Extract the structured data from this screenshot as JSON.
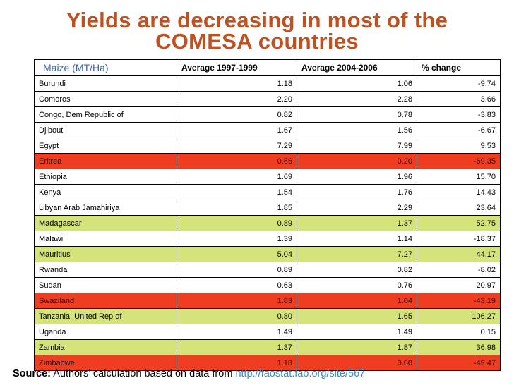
{
  "title": {
    "line1": "Yields are decreasing in most of the",
    "line2": "COMESA countries"
  },
  "table": {
    "headers": [
      "Maize (MT/Ha)",
      "Average 1997-1999",
      "Average 2004-2006",
      "% change"
    ],
    "rows": [
      {
        "country": "Burundi",
        "avg1": "1.18",
        "avg2": "1.06",
        "change": "-9.74",
        "highlight": "none"
      },
      {
        "country": "Comoros",
        "avg1": "2.20",
        "avg2": "2.28",
        "change": "3.66",
        "highlight": "none"
      },
      {
        "country": "Congo, Dem Republic of",
        "avg1": "0.82",
        "avg2": "0.78",
        "change": "-3.83",
        "highlight": "none"
      },
      {
        "country": "Djibouti",
        "avg1": "1.67",
        "avg2": "1.56",
        "change": "-6.67",
        "highlight": "none"
      },
      {
        "country": "Egypt",
        "avg1": "7.29",
        "avg2": "7.99",
        "change": "9.53",
        "highlight": "none"
      },
      {
        "country": "Eritrea",
        "avg1": "0.66",
        "avg2": "0.20",
        "change": "-69.35",
        "highlight": "red"
      },
      {
        "country": "Ethiopia",
        "avg1": "1.69",
        "avg2": "1.96",
        "change": "15.70",
        "highlight": "none"
      },
      {
        "country": "Kenya",
        "avg1": "1.54",
        "avg2": "1.76",
        "change": "14.43",
        "highlight": "none"
      },
      {
        "country": "Libyan Arab Jamahiriya",
        "avg1": "1.85",
        "avg2": "2.29",
        "change": "23.64",
        "highlight": "none"
      },
      {
        "country": "Madagascar",
        "avg1": "0.89",
        "avg2": "1.37",
        "change": "52.75",
        "highlight": "green"
      },
      {
        "country": "Malawi",
        "avg1": "1.39",
        "avg2": "1.14",
        "change": "-18.37",
        "highlight": "none"
      },
      {
        "country": "Mauritius",
        "avg1": "5.04",
        "avg2": "7.27",
        "change": "44.17",
        "highlight": "green"
      },
      {
        "country": "Rwanda",
        "avg1": "0.89",
        "avg2": "0.82",
        "change": "-8.02",
        "highlight": "none"
      },
      {
        "country": "Sudan",
        "avg1": "0.63",
        "avg2": "0.76",
        "change": "20.97",
        "highlight": "none"
      },
      {
        "country": "Swaziland",
        "avg1": "1.83",
        "avg2": "1.04",
        "change": "-43.19",
        "highlight": "red"
      },
      {
        "country": "Tanzania, United Rep of",
        "avg1": "0.80",
        "avg2": "1.65",
        "change": "106.27",
        "highlight": "green"
      },
      {
        "country": "Uganda",
        "avg1": "1.49",
        "avg2": "1.49",
        "change": "0.15",
        "highlight": "none"
      },
      {
        "country": "Zambia",
        "avg1": "1.37",
        "avg2": "1.87",
        "change": "36.98",
        "highlight": "green"
      },
      {
        "country": "Zimbabwe",
        "avg1": "1.18",
        "avg2": "0.60",
        "change": "-49.47",
        "highlight": "red"
      }
    ]
  },
  "source": {
    "label": "Source:",
    "text": " Authors’ calculation based on data from ",
    "link": "http://faostat.fao.org/site/567"
  },
  "colors": {
    "title": "#c0501f",
    "red_row": "#ef3d22",
    "green_row": "#d4e47a",
    "link": "#2a8fd8"
  }
}
